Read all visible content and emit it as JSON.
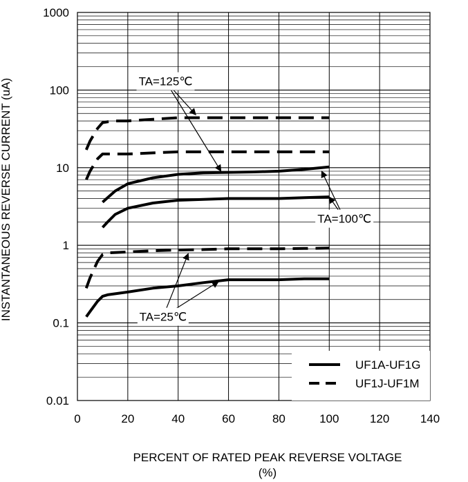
{
  "chart_data": {
    "type": "line",
    "xlabel": "PERCENT OF RATED PEAK REVERSE VOLTAGE",
    "xlabel_unit": "(%)",
    "ylabel": "INSTANTANEOUS REVERSE CURRENT (uA)",
    "xlim": [
      0,
      140
    ],
    "ylim": [
      0.01,
      1000
    ],
    "y_scale": "log",
    "grid": true,
    "x_ticks": [
      "0",
      "20",
      "40",
      "60",
      "80",
      "100",
      "120",
      "140"
    ],
    "y_ticks": [
      "0.01",
      "0.1",
      "1",
      "10",
      "100",
      "1000"
    ],
    "legend_position": "bottom-right",
    "legend": [
      {
        "label": "UF1A-UF1G",
        "style": "solid"
      },
      {
        "label": "UF1J-UF1M",
        "style": "dashed"
      }
    ],
    "series": [
      {
        "style": "dashed",
        "x": [
          3.5,
          5,
          8,
          10,
          14,
          20,
          30,
          40,
          50,
          60,
          70,
          80,
          90,
          100
        ],
        "y": [
          17,
          22,
          32,
          38,
          40,
          40,
          42,
          44,
          44,
          44,
          44,
          44,
          44,
          44
        ]
      },
      {
        "style": "dashed",
        "x": [
          3.5,
          5,
          8,
          10,
          14,
          20,
          30,
          40,
          50,
          60,
          70,
          80,
          90,
          100
        ],
        "y": [
          7,
          9,
          13,
          15,
          15,
          15,
          15.5,
          16,
          16,
          16,
          16,
          16,
          16,
          16
        ]
      },
      {
        "style": "solid",
        "x": [
          10,
          12,
          15,
          20,
          30,
          40,
          50,
          60,
          70,
          80,
          90,
          100
        ],
        "y": [
          3.6,
          4.1,
          5,
          6.2,
          7.4,
          8.2,
          8.6,
          8.7,
          8.8,
          9.0,
          9.5,
          10.2
        ]
      },
      {
        "style": "solid",
        "x": [
          10,
          12,
          15,
          20,
          30,
          40,
          50,
          60,
          70,
          80,
          90,
          100
        ],
        "y": [
          1.7,
          2.0,
          2.5,
          3.0,
          3.5,
          3.8,
          3.9,
          4.0,
          4.0,
          4.0,
          4.1,
          4.2
        ]
      },
      {
        "style": "dashed",
        "x": [
          3.5,
          5,
          8,
          10,
          12,
          20,
          30,
          40,
          50,
          60,
          70,
          80,
          90,
          100
        ],
        "y": [
          0.28,
          0.38,
          0.62,
          0.76,
          0.8,
          0.82,
          0.85,
          0.87,
          0.88,
          0.9,
          0.9,
          0.9,
          0.91,
          0.92
        ]
      },
      {
        "style": "solid",
        "x": [
          3.5,
          5,
          8,
          10,
          12,
          20,
          30,
          40,
          50,
          60,
          70,
          80,
          90,
          100
        ],
        "y": [
          0.12,
          0.14,
          0.19,
          0.22,
          0.23,
          0.25,
          0.28,
          0.3,
          0.33,
          0.36,
          0.36,
          0.36,
          0.37,
          0.37
        ]
      }
    ],
    "annotations": [
      {
        "text": "TA=125℃",
        "label_at": [
          35,
          130
        ],
        "arrows_to": [
          [
            47,
            48
          ],
          [
            57,
            9
          ]
        ]
      },
      {
        "text": "TA=100℃",
        "label_at": [
          106,
          2.2
        ],
        "arrows_to": [
          [
            97,
            9
          ],
          [
            100,
            4.2
          ]
        ]
      },
      {
        "text": "TA=25℃",
        "label_at": [
          34,
          0.12
        ],
        "arrows_to": [
          [
            44,
            0.78
          ],
          [
            56,
            0.34
          ]
        ]
      }
    ]
  }
}
